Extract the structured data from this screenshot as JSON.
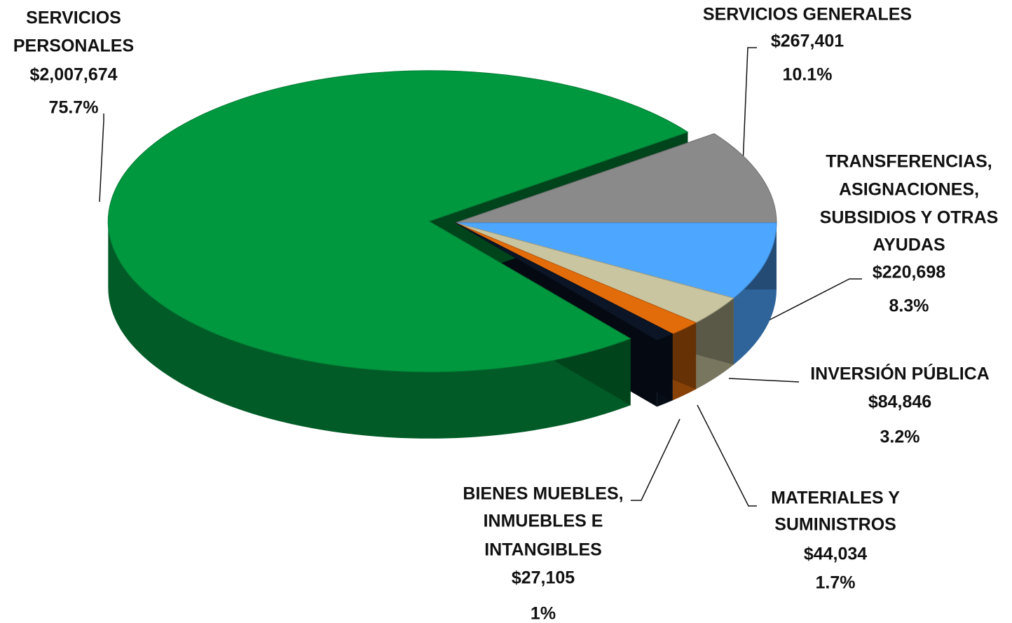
{
  "chart_data": {
    "type": "pie3d",
    "categories": [
      [
        "SERVICIOS GENERALES"
      ],
      [
        "TRANSFERENCIAS,",
        "ASIGNACIONES,",
        "SUBSIDIOS Y OTRAS",
        "AYUDAS"
      ],
      [
        "INVERSIÓN PÚBLICA"
      ],
      [
        "MATERIALES Y",
        "SUMINISTROS"
      ],
      [
        "BIENES MUEBLES,",
        "INMUEBLES E",
        "INTANGIBLES"
      ],
      [
        "SERVICIOS",
        "PERSONALES"
      ]
    ],
    "values": [
      267401,
      220698,
      84846,
      44034,
      27105,
      2007674
    ],
    "value_labels": [
      "$267,401",
      "$220,698",
      "$84,846",
      "$44,034",
      "$27,105",
      "$2,007,674"
    ],
    "percentages": [
      10.1,
      8.3,
      3.2,
      1.7,
      1,
      75.7
    ],
    "percentage_labels": [
      "10.1%",
      "8.3%",
      "3.2%",
      "1.7%",
      "1%",
      "75.7%"
    ],
    "colors": [
      "#8a8a8a",
      "#4da6ff",
      "#c9c5a0",
      "#e36c0a",
      "#0b1526",
      "#00983f"
    ]
  }
}
